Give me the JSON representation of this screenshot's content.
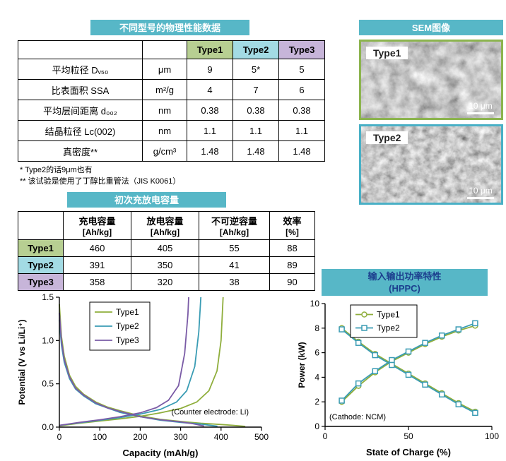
{
  "colors": {
    "banner": "#57b7c7",
    "type1": "#b7cf92",
    "type2": "#a3dbe4",
    "type3": "#c7b5d9",
    "series_green": "#8fae3c",
    "series_teal": "#3a9cb4",
    "series_purple": "#7a5ba6"
  },
  "phys_section": {
    "title": "不同型号的物理性能数据",
    "table": {
      "type_headers": [
        "Type1",
        "Type2",
        "Type3"
      ],
      "rows": [
        {
          "label": "平均粒径 Dᵥ₅₀",
          "unit": "μm",
          "values": [
            "9",
            "5*",
            "5"
          ]
        },
        {
          "label": "比表面积 SSA",
          "unit": "m²/g",
          "values": [
            "4",
            "7",
            "6"
          ]
        },
        {
          "label": "平均层间距离 d₀₀₂",
          "unit": "nm",
          "values": [
            "0.38",
            "0.38",
            "0.38"
          ]
        },
        {
          "label": "结晶粒径 Lc(002)",
          "unit": "nm",
          "values": [
            "1.1",
            "1.1",
            "1.1"
          ]
        },
        {
          "label": "真密度**",
          "unit": "g/cm³",
          "values": [
            "1.48",
            "1.48",
            "1.48"
          ]
        }
      ]
    },
    "footnotes": [
      "*   Type2的话9μm也有",
      "** 该试验是使用了丁醇比重管法（JIS K0061）"
    ]
  },
  "sem_section": {
    "title": "SEM图像",
    "images": [
      {
        "label": "Type1",
        "scale": "10 μm"
      },
      {
        "label": "Type2",
        "scale": "10 μm"
      }
    ]
  },
  "capacity_section": {
    "title": "初次充放电容量",
    "table": {
      "col_headers": [
        {
          "l1": "充电容量",
          "l2": "[Ah/kg]"
        },
        {
          "l1": "放电容量",
          "l2": "[Ah/kg]"
        },
        {
          "l1": "不可逆容量",
          "l2": "[Ah/kg]"
        },
        {
          "l1": "效率",
          "l2": "[%]"
        }
      ],
      "rows": [
        {
          "label": "Type1",
          "values": [
            "460",
            "405",
            "55",
            "88"
          ]
        },
        {
          "label": "Type2",
          "values": [
            "391",
            "350",
            "41",
            "89"
          ]
        },
        {
          "label": "Type3",
          "values": [
            "358",
            "320",
            "38",
            "90"
          ]
        }
      ]
    }
  },
  "hppc_section": {
    "title_line1": "输入输出功率特性",
    "title_line2": "(HPPC)"
  },
  "chart_data": [
    {
      "type": "line",
      "title": "",
      "xlabel": "Capacity (mAh/g)",
      "ylabel": "Potential (V vs Li/Li⁺)",
      "xlim": [
        0,
        500
      ],
      "ylim": [
        0,
        1.5
      ],
      "grid": false,
      "legend_position": "upper-center-left",
      "xticks": [
        {
          "v": 0,
          "label": "0"
        },
        {
          "v": 100,
          "label": "100"
        },
        {
          "v": 200,
          "label": "200"
        },
        {
          "v": 300,
          "label": "300"
        },
        {
          "v": 400,
          "label": "400"
        },
        {
          "v": 500,
          "label": "500"
        }
      ],
      "yticks": [
        {
          "v": 0,
          "label": "0.0"
        },
        {
          "v": 0.5,
          "label": "0.5"
        },
        {
          "v": 1.0,
          "label": "1.0"
        },
        {
          "v": 1.5,
          "label": "1.5"
        }
      ],
      "annotation": "(Counter electrode: Li)",
      "series": [
        {
          "name": "Type1",
          "color": "#8fae3c",
          "marker": "",
          "branches": [
            [
              [
                0,
                1.42
              ],
              [
                5,
                1.05
              ],
              [
                12,
                0.82
              ],
              [
                25,
                0.6
              ],
              [
                40,
                0.47
              ],
              [
                60,
                0.38
              ],
              [
                90,
                0.29
              ],
              [
                120,
                0.23
              ],
              [
                150,
                0.19
              ],
              [
                200,
                0.13
              ],
              [
                250,
                0.09
              ],
              [
                300,
                0.065
              ],
              [
                350,
                0.045
              ],
              [
                400,
                0.03
              ],
              [
                430,
                0.02
              ],
              [
                460,
                0.008
              ]
            ],
            [
              [
                0,
                0.015
              ],
              [
                50,
                0.045
              ],
              [
                100,
                0.07
              ],
              [
                150,
                0.095
              ],
              [
                200,
                0.125
              ],
              [
                250,
                0.165
              ],
              [
                300,
                0.215
              ],
              [
                340,
                0.29
              ],
              [
                370,
                0.42
              ],
              [
                390,
                0.65
              ],
              [
                400,
                1.0
              ],
              [
                405,
                1.5
              ]
            ]
          ]
        },
        {
          "name": "Type2",
          "color": "#3a9cb4",
          "marker": "",
          "branches": [
            [
              [
                0,
                1.24
              ],
              [
                5,
                0.95
              ],
              [
                12,
                0.75
              ],
              [
                25,
                0.56
              ],
              [
                40,
                0.44
              ],
              [
                60,
                0.36
              ],
              [
                90,
                0.27
              ],
              [
                120,
                0.22
              ],
              [
                150,
                0.17
              ],
              [
                200,
                0.12
              ],
              [
                250,
                0.08
              ],
              [
                300,
                0.055
              ],
              [
                350,
                0.035
              ],
              [
                391,
                0.01
              ]
            ],
            [
              [
                0,
                0.02
              ],
              [
                50,
                0.05
              ],
              [
                100,
                0.08
              ],
              [
                150,
                0.11
              ],
              [
                200,
                0.15
              ],
              [
                250,
                0.205
              ],
              [
                290,
                0.29
              ],
              [
                315,
                0.42
              ],
              [
                335,
                0.7
              ],
              [
                345,
                1.1
              ],
              [
                350,
                1.5
              ]
            ]
          ]
        },
        {
          "name": "Type3",
          "color": "#7a5ba6",
          "marker": "",
          "branches": [
            [
              [
                0,
                1.32
              ],
              [
                5,
                1.0
              ],
              [
                12,
                0.78
              ],
              [
                25,
                0.58
              ],
              [
                40,
                0.45
              ],
              [
                60,
                0.37
              ],
              [
                90,
                0.28
              ],
              [
                120,
                0.22
              ],
              [
                150,
                0.18
              ],
              [
                200,
                0.12
              ],
              [
                250,
                0.085
              ],
              [
                300,
                0.06
              ],
              [
                330,
                0.04
              ],
              [
                358,
                0.012
              ]
            ],
            [
              [
                0,
                0.02
              ],
              [
                50,
                0.055
              ],
              [
                100,
                0.085
              ],
              [
                150,
                0.12
              ],
              [
                200,
                0.165
              ],
              [
                240,
                0.225
              ],
              [
                270,
                0.31
              ],
              [
                295,
                0.48
              ],
              [
                310,
                0.85
              ],
              [
                318,
                1.3
              ],
              [
                320,
                1.5
              ]
            ]
          ]
        }
      ]
    },
    {
      "type": "line",
      "title": "输入输出功率特性 (HPPC)",
      "xlabel": "State of Charge (%)",
      "ylabel": "Power (kW)",
      "xlim": [
        0,
        100
      ],
      "ylim": [
        0,
        10
      ],
      "grid": false,
      "legend_position": "upper-center",
      "xticks": [
        {
          "v": 0,
          "label": "0"
        },
        {
          "v": 50,
          "label": "50"
        },
        {
          "v": 100,
          "label": "100"
        }
      ],
      "yticks": [
        {
          "v": 0,
          "label": "0"
        },
        {
          "v": 2,
          "label": "2"
        },
        {
          "v": 4,
          "label": "4"
        },
        {
          "v": 6,
          "label": "6"
        },
        {
          "v": 8,
          "label": "8"
        },
        {
          "v": 10,
          "label": "10"
        }
      ],
      "annotation": "(Cathode: NCM)",
      "series": [
        {
          "name": "Type1",
          "color": "#8fae3c",
          "marker": "circle",
          "branches": [
            [
              [
                10,
                2.0
              ],
              [
                20,
                3.3
              ],
              [
                30,
                4.4
              ],
              [
                40,
                5.3
              ],
              [
                50,
                6.0
              ],
              [
                60,
                6.7
              ],
              [
                70,
                7.3
              ],
              [
                80,
                7.8
              ],
              [
                90,
                8.2
              ]
            ],
            [
              [
                10,
                8.0
              ],
              [
                20,
                6.9
              ],
              [
                30,
                5.9
              ],
              [
                40,
                5.1
              ],
              [
                50,
                4.3
              ],
              [
                60,
                3.5
              ],
              [
                70,
                2.7
              ],
              [
                80,
                1.9
              ],
              [
                90,
                1.2
              ]
            ]
          ]
        },
        {
          "name": "Type2",
          "color": "#3a9cb4",
          "marker": "square",
          "branches": [
            [
              [
                10,
                2.1
              ],
              [
                20,
                3.5
              ],
              [
                30,
                4.5
              ],
              [
                40,
                5.4
              ],
              [
                50,
                6.1
              ],
              [
                60,
                6.8
              ],
              [
                70,
                7.4
              ],
              [
                80,
                7.9
              ],
              [
                90,
                8.4
              ]
            ],
            [
              [
                10,
                7.9
              ],
              [
                20,
                6.8
              ],
              [
                30,
                5.8
              ],
              [
                40,
                5.0
              ],
              [
                50,
                4.2
              ],
              [
                60,
                3.4
              ],
              [
                70,
                2.6
              ],
              [
                80,
                1.8
              ],
              [
                90,
                1.1
              ]
            ]
          ]
        }
      ]
    }
  ]
}
